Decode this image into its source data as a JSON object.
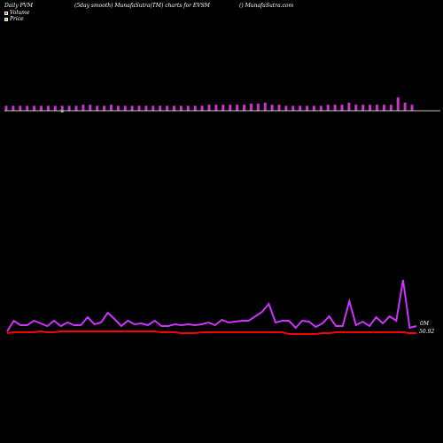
{
  "header": {
    "left": "Daily PVM",
    "middle": "(5day smooth) MunafaSutra(TM) charts for EVSM",
    "right": "() MunafaSutra.com"
  },
  "legend": {
    "volume_label": "Volume",
    "price_label": "Price",
    "volume_color": "#cc33cc",
    "price_color": "#ff8c00"
  },
  "colors": {
    "volume_bar": "#cc33cc",
    "volume_bar_down": "#33cc33",
    "volume_line": "#cc33ff",
    "price_line": "#ff0000",
    "baseline": "#ffffff"
  },
  "chart_data": {
    "type": "bar",
    "volume_bars": [
      {
        "v": 3,
        "d": false
      },
      {
        "v": 3,
        "d": false
      },
      {
        "v": 3,
        "d": false
      },
      {
        "v": 3,
        "d": false
      },
      {
        "v": 3,
        "d": false
      },
      {
        "v": 3,
        "d": false
      },
      {
        "v": 3,
        "d": false
      },
      {
        "v": 3,
        "d": false
      },
      {
        "v": 3,
        "d": true
      },
      {
        "v": 3,
        "d": false
      },
      {
        "v": 3,
        "d": false
      },
      {
        "v": 4,
        "d": false
      },
      {
        "v": 4,
        "d": false
      },
      {
        "v": 3,
        "d": false
      },
      {
        "v": 3,
        "d": false
      },
      {
        "v": 4,
        "d": false
      },
      {
        "v": 3,
        "d": false
      },
      {
        "v": 3,
        "d": false
      },
      {
        "v": 3,
        "d": false
      },
      {
        "v": 3,
        "d": false
      },
      {
        "v": 3,
        "d": false
      },
      {
        "v": 3,
        "d": false
      },
      {
        "v": 3,
        "d": false
      },
      {
        "v": 3,
        "d": false
      },
      {
        "v": 3,
        "d": false
      },
      {
        "v": 3,
        "d": false
      },
      {
        "v": 3,
        "d": false
      },
      {
        "v": 3,
        "d": false
      },
      {
        "v": 3,
        "d": false
      },
      {
        "v": 4,
        "d": false
      },
      {
        "v": 4,
        "d": false
      },
      {
        "v": 4,
        "d": false
      },
      {
        "v": 4,
        "d": false
      },
      {
        "v": 4,
        "d": false
      },
      {
        "v": 4,
        "d": false
      },
      {
        "v": 5,
        "d": false
      },
      {
        "v": 5,
        "d": false
      },
      {
        "v": 6,
        "d": false
      },
      {
        "v": 4,
        "d": false
      },
      {
        "v": 4,
        "d": false
      },
      {
        "v": 3,
        "d": false
      },
      {
        "v": 3,
        "d": false
      },
      {
        "v": 3,
        "d": false
      },
      {
        "v": 3,
        "d": false
      },
      {
        "v": 3,
        "d": false
      },
      {
        "v": 3,
        "d": false
      },
      {
        "v": 4,
        "d": false
      },
      {
        "v": 4,
        "d": false
      },
      {
        "v": 4,
        "d": false
      },
      {
        "v": 6,
        "d": false
      },
      {
        "v": 4,
        "d": false
      },
      {
        "v": 4,
        "d": false
      },
      {
        "v": 4,
        "d": false
      },
      {
        "v": 4,
        "d": false
      },
      {
        "v": 4,
        "d": false
      },
      {
        "v": 4,
        "d": false
      },
      {
        "v": 11,
        "d": false
      },
      {
        "v": 6,
        "d": false
      },
      {
        "v": 4,
        "d": false
      }
    ],
    "volume_line": [
      374,
      362,
      367,
      367,
      362,
      365,
      368,
      362,
      368,
      364,
      367,
      367,
      358,
      366,
      364,
      353,
      360,
      368,
      362,
      366,
      365,
      367,
      362,
      368,
      368,
      366,
      367,
      366,
      367,
      366,
      364,
      367,
      361,
      364,
      363,
      362,
      362,
      357,
      352,
      343,
      364,
      362,
      362,
      370,
      362,
      363,
      369,
      365,
      357,
      368,
      368,
      340,
      367,
      363,
      368,
      358,
      365,
      357,
      362,
      316,
      370,
      368
    ],
    "price_line": [
      376,
      375,
      375,
      375,
      375,
      374,
      375,
      375,
      374,
      374,
      374,
      374,
      374,
      374,
      374,
      374,
      374,
      374,
      374,
      374,
      374,
      374,
      374,
      375,
      375,
      375,
      376,
      376,
      376,
      375,
      375,
      375,
      375,
      375,
      375,
      375,
      375,
      375,
      375,
      375,
      375,
      375,
      377,
      377,
      377,
      377,
      377,
      376,
      376,
      375,
      375,
      375,
      375,
      375,
      375,
      375,
      375,
      375,
      375,
      375,
      376,
      376
    ],
    "volume_axis_label": "0M",
    "price_axis_label": "50.92"
  }
}
